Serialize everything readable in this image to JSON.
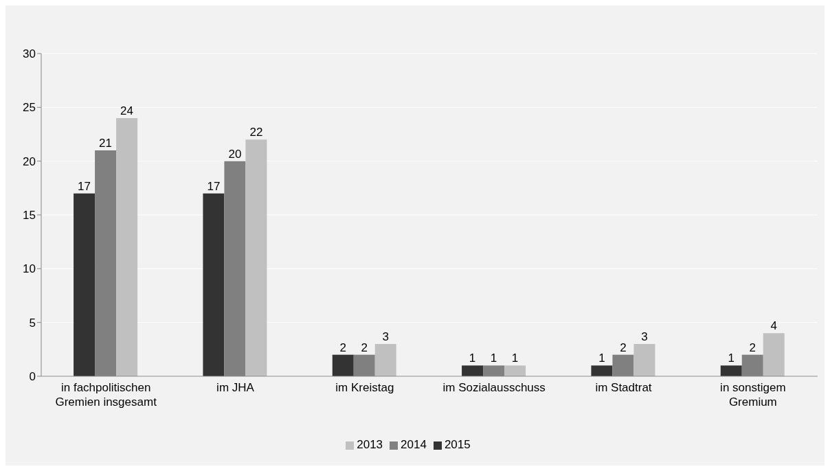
{
  "chart_data": {
    "type": "bar",
    "categories": [
      "in fachpolitischen Gremien insgesamt",
      "im JHA",
      "im Kreistag",
      "im Sozialausschuss",
      "im Stadtrat",
      "in sonstigem Gremium"
    ],
    "series": [
      {
        "name": "2015",
        "color": "#333333",
        "values": [
          17,
          17,
          2,
          1,
          1,
          1
        ]
      },
      {
        "name": "2014",
        "color": "#808080",
        "values": [
          21,
          20,
          2,
          1,
          2,
          2
        ]
      },
      {
        "name": "2013",
        "color": "#c0c0c0",
        "values": [
          24,
          22,
          3,
          1,
          3,
          4
        ]
      }
    ],
    "ylim": [
      0,
      30
    ],
    "yticks": [
      0,
      5,
      10,
      15,
      20,
      25,
      30
    ],
    "grid": "y",
    "legend": "bottom",
    "data_labels": true
  }
}
